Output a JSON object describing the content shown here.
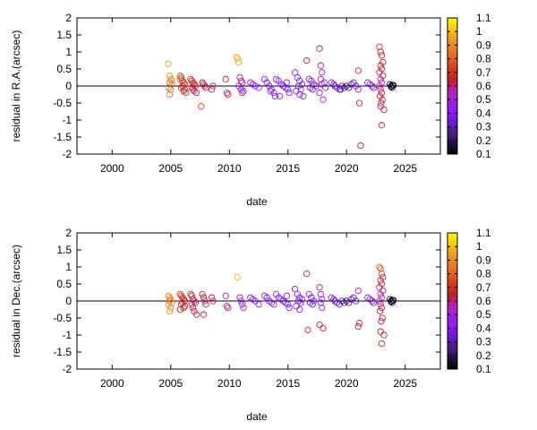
{
  "chart_data": [
    {
      "type": "scatter",
      "xlabel": "date",
      "ylabel": "residual in R.A.(arcsec)",
      "xlim": [
        1997,
        2028
      ],
      "ylim": [
        -2,
        2
      ],
      "xticks": [
        "2000",
        "2005",
        "2010",
        "2015",
        "2020",
        "2025"
      ],
      "yticks": [
        "-2",
        "-1.5",
        "-1",
        "-0.5",
        "0",
        "0.5",
        "1",
        "1.5",
        "2"
      ],
      "colorbar": {
        "min": 0.1,
        "max": 1.1,
        "ticks": [
          "0.1",
          "0.2",
          "0.3",
          "0.4",
          "0.5",
          "0.6",
          "0.7",
          "0.8",
          "0.9",
          "1",
          "1.1"
        ],
        "palette": "gnuplot color-bar (black-purple-red-orange-yellow)"
      },
      "series": [
        {
          "x": [
            2004.8,
            2004.9,
            2005.0,
            2004.9,
            2005.1,
            2004.8,
            2005.0,
            2004.9,
            2005.1
          ],
          "y": [
            0.65,
            0.3,
            0.2,
            0.1,
            0.05,
            -0.05,
            -0.1,
            -0.25,
            0.15
          ],
          "c": [
            0.95,
            0.9,
            0.88,
            0.85,
            0.82,
            0.87,
            0.8,
            0.84,
            0.9
          ]
        },
        {
          "x": [
            2005.8,
            2005.9,
            2006.0,
            2006.1,
            2006.2,
            2006.0,
            2005.9,
            2006.2,
            2006.1,
            2006.3,
            2005.8,
            2006.0
          ],
          "y": [
            0.3,
            0.25,
            0.15,
            0.1,
            0.05,
            0.0,
            -0.05,
            -0.1,
            -0.15,
            -0.2,
            0.2,
            0.0
          ],
          "c": [
            0.75,
            0.72,
            0.7,
            0.68,
            0.66,
            0.7,
            0.72,
            0.68,
            0.66,
            0.64,
            0.74,
            0.7
          ]
        },
        {
          "x": [
            2006.7,
            2006.8,
            2006.9,
            2007.0,
            2007.1,
            2006.8,
            2006.9,
            2007.0,
            2007.2
          ],
          "y": [
            0.2,
            0.15,
            0.1,
            0.05,
            0.0,
            -0.05,
            -0.1,
            -0.15,
            -0.2
          ],
          "c": [
            0.7,
            0.68,
            0.66,
            0.64,
            0.62,
            0.66,
            0.64,
            0.62,
            0.6
          ]
        },
        {
          "x": [
            2007.7,
            2007.8,
            2007.9,
            2008.0,
            2007.6,
            2008.5,
            2008.6
          ],
          "y": [
            0.1,
            0.05,
            0.0,
            -0.05,
            -0.6,
            -0.1,
            0.0
          ],
          "c": [
            0.66,
            0.64,
            0.62,
            0.6,
            0.7,
            0.62,
            0.6
          ]
        },
        {
          "x": [
            2009.7,
            2009.8,
            2009.9,
            2010.6,
            2010.7,
            2010.8
          ],
          "y": [
            0.2,
            -0.2,
            -0.25,
            0.85,
            0.8,
            0.7
          ],
          "c": [
            0.6,
            0.58,
            0.62,
            1.0,
            0.98,
            0.96
          ]
        },
        {
          "x": [
            2010.9,
            2011.0,
            2011.1,
            2010.8,
            2011.0,
            2011.2,
            2011.1
          ],
          "y": [
            0.25,
            0.15,
            0.1,
            0.0,
            -0.1,
            -0.15,
            -0.2
          ],
          "c": [
            0.6,
            0.58,
            0.56,
            0.45,
            0.42,
            0.4,
            0.6
          ]
        },
        {
          "x": [
            2011.8,
            2012.0,
            2012.2,
            2012.5,
            2013.0,
            2013.2,
            2013.4,
            2013.6,
            2013.8,
            2013.5,
            2013.9
          ],
          "y": [
            0.1,
            0.05,
            0.0,
            -0.05,
            0.2,
            0.1,
            0.0,
            -0.1,
            -0.2,
            -0.15,
            -0.3
          ],
          "c": [
            0.45,
            0.42,
            0.4,
            0.44,
            0.42,
            0.4,
            0.38,
            0.41,
            0.44,
            0.39,
            0.42
          ]
        },
        {
          "x": [
            2014.0,
            2014.2,
            2014.4,
            2014.6,
            2014.8,
            2015.0,
            2015.1,
            2014.9,
            2014.3
          ],
          "y": [
            0.2,
            0.15,
            0.05,
            0.0,
            -0.05,
            -0.1,
            -0.2,
            0.1,
            -0.3
          ],
          "c": [
            0.42,
            0.41,
            0.4,
            0.38,
            0.37,
            0.39,
            0.4,
            0.42,
            0.43
          ]
        },
        {
          "x": [
            2015.6,
            2015.8,
            2016.0,
            2016.2,
            2015.9,
            2016.1,
            2015.7,
            2016.0,
            2016.3
          ],
          "y": [
            0.4,
            0.25,
            0.15,
            0.05,
            0.0,
            -0.1,
            -0.15,
            -0.25,
            -0.3
          ],
          "c": [
            0.42,
            0.4,
            0.38,
            0.36,
            0.35,
            0.37,
            0.4,
            0.42,
            0.44
          ]
        },
        {
          "x": [
            2016.8,
            2017.0,
            2017.2,
            2017.4,
            2016.9,
            2017.1,
            2016.6
          ],
          "y": [
            0.2,
            0.15,
            0.05,
            0.0,
            -0.05,
            -0.1,
            0.75
          ],
          "c": [
            0.38,
            0.37,
            0.36,
            0.35,
            0.37,
            0.38,
            0.6
          ]
        },
        {
          "x": [
            2017.7,
            2017.8,
            2017.9,
            2017.8,
            2017.9,
            2017.7,
            2018.0,
            2018.1,
            2018.2
          ],
          "y": [
            1.1,
            0.6,
            0.4,
            0.2,
            0.05,
            -0.2,
            -0.4,
            0.1,
            -0.05
          ],
          "c": [
            0.62,
            0.6,
            0.58,
            0.45,
            0.4,
            0.42,
            0.56,
            0.4,
            0.38
          ]
        },
        {
          "x": [
            2018.7,
            2018.9,
            2019.0,
            2019.2,
            2019.4,
            2019.6,
            2019.8,
            2019.5
          ],
          "y": [
            0.1,
            0.05,
            0.0,
            -0.05,
            -0.1,
            0.0,
            -0.05,
            -0.1
          ],
          "c": [
            0.38,
            0.36,
            0.35,
            0.34,
            0.33,
            0.3,
            0.25,
            0.32
          ]
        },
        {
          "x": [
            2020.0,
            2020.2,
            2020.4,
            2020.6,
            2020.8,
            2021.0,
            2021.1,
            2021.2,
            2021.0
          ],
          "y": [
            0.0,
            -0.05,
            0.05,
            0.1,
            0.0,
            0.45,
            -0.5,
            -1.75,
            -0.1
          ],
          "c": [
            0.2,
            0.25,
            0.3,
            0.35,
            0.36,
            0.62,
            0.64,
            0.66,
            0.38
          ]
        },
        {
          "x": [
            2021.8,
            2022.0,
            2022.2,
            2022.3
          ],
          "y": [
            0.1,
            0.05,
            0.0,
            -0.05
          ],
          "c": [
            0.4,
            0.38,
            0.36,
            0.34
          ]
        },
        {
          "x": [
            2022.8,
            2022.9,
            2023.0,
            2023.1,
            2022.9,
            2023.0,
            2022.8,
            2023.1,
            2022.9,
            2023.0,
            2022.8,
            2022.9,
            2023.0,
            2022.85,
            2023.05,
            2022.95,
            2022.9,
            2023.2,
            2023.0
          ],
          "y": [
            1.15,
            1.0,
            0.9,
            0.7,
            0.6,
            0.5,
            0.4,
            0.3,
            0.2,
            0.1,
            0.0,
            -0.1,
            -0.2,
            -0.3,
            -0.4,
            -0.5,
            -0.6,
            -0.7,
            -1.15
          ],
          "c": [
            0.68,
            0.66,
            0.64,
            0.62,
            0.64,
            0.66,
            0.62,
            0.6,
            0.58,
            0.56,
            0.55,
            0.6,
            0.62,
            0.64,
            0.66,
            0.62,
            0.6,
            0.64,
            0.66
          ]
        },
        {
          "x": [
            2023.7,
            2023.8,
            2023.9,
            2024.0,
            2023.8,
            2023.9
          ],
          "y": [
            0.05,
            0.0,
            -0.05,
            0.02,
            -0.02,
            0.03
          ],
          "c": [
            0.15,
            0.12,
            0.2,
            0.1,
            0.18,
            0.14
          ]
        }
      ]
    },
    {
      "type": "scatter",
      "xlabel": "date",
      "ylabel": "residual in Dec.(arcsec)",
      "xlim": [
        1997,
        2028
      ],
      "ylim": [
        -2,
        2
      ],
      "xticks": [
        "2000",
        "2005",
        "2010",
        "2015",
        "2020",
        "2025"
      ],
      "yticks": [
        "-2",
        "-1.5",
        "-1",
        "-0.5",
        "0",
        "0.5",
        "1",
        "1.5",
        "2"
      ],
      "colorbar": {
        "min": 0.1,
        "max": 1.1,
        "ticks": [
          "0.1",
          "0.2",
          "0.3",
          "0.4",
          "0.5",
          "0.6",
          "0.7",
          "0.8",
          "0.9",
          "1",
          "1.1"
        ],
        "palette": "gnuplot color-bar (black-purple-red-orange-yellow)"
      },
      "series": [
        {
          "x": [
            2004.8,
            2004.9,
            2005.0,
            2004.9,
            2005.1,
            2004.8,
            2005.0,
            2004.9
          ],
          "y": [
            0.15,
            0.1,
            0.05,
            0.0,
            -0.05,
            -0.1,
            -0.2,
            -0.3
          ],
          "c": [
            0.9,
            0.88,
            0.86,
            0.85,
            0.84,
            0.87,
            0.89,
            0.92
          ]
        },
        {
          "x": [
            2005.8,
            2005.9,
            2006.0,
            2006.1,
            2006.2,
            2006.0,
            2005.9,
            2006.2,
            2006.1,
            2005.8
          ],
          "y": [
            0.2,
            0.15,
            0.1,
            0.05,
            0.0,
            -0.05,
            -0.1,
            -0.15,
            -0.2,
            -0.25
          ],
          "c": [
            0.72,
            0.7,
            0.68,
            0.66,
            0.65,
            0.7,
            0.72,
            0.68,
            0.66,
            0.64
          ]
        },
        {
          "x": [
            2006.7,
            2006.8,
            2006.9,
            2007.0,
            2007.1,
            2006.8,
            2006.9,
            2007.0,
            2007.2
          ],
          "y": [
            0.2,
            0.15,
            0.05,
            0.0,
            -0.05,
            -0.1,
            -0.2,
            -0.3,
            -0.4
          ],
          "c": [
            0.68,
            0.66,
            0.64,
            0.62,
            0.6,
            0.62,
            0.64,
            0.66,
            0.6
          ]
        },
        {
          "x": [
            2007.7,
            2007.8,
            2007.9,
            2008.0,
            2007.8,
            2008.5,
            2008.6
          ],
          "y": [
            0.2,
            0.1,
            0.0,
            -0.1,
            -0.4,
            0.1,
            0.0
          ],
          "c": [
            0.66,
            0.64,
            0.62,
            0.6,
            0.64,
            0.62,
            0.6
          ]
        },
        {
          "x": [
            2009.7,
            2009.8,
            2009.9,
            2010.7,
            2010.9,
            2011.0,
            2011.1,
            2011.2
          ],
          "y": [
            0.15,
            -0.15,
            -0.2,
            0.7,
            0.1,
            0.0,
            -0.1,
            -0.2
          ],
          "c": [
            0.55,
            0.56,
            0.58,
            0.98,
            0.45,
            0.42,
            0.44,
            0.4
          ]
        },
        {
          "x": [
            2011.8,
            2012.0,
            2012.2,
            2012.5,
            2013.0,
            2013.2,
            2013.4,
            2013.6,
            2013.8
          ],
          "y": [
            0.1,
            0.05,
            0.0,
            -0.1,
            0.15,
            0.1,
            0.0,
            -0.05,
            -0.1
          ],
          "c": [
            0.45,
            0.42,
            0.4,
            0.44,
            0.42,
            0.4,
            0.38,
            0.41,
            0.44
          ]
        },
        {
          "x": [
            2014.0,
            2014.2,
            2014.4,
            2014.6,
            2014.8,
            2015.0,
            2015.1,
            2014.9
          ],
          "y": [
            0.2,
            0.1,
            0.05,
            0.0,
            -0.05,
            -0.1,
            -0.2,
            0.15
          ],
          "c": [
            0.42,
            0.41,
            0.4,
            0.38,
            0.37,
            0.39,
            0.4,
            0.42
          ]
        },
        {
          "x": [
            2015.6,
            2015.8,
            2016.0,
            2016.2,
            2015.9,
            2016.1,
            2015.7,
            2016.0
          ],
          "y": [
            0.35,
            0.2,
            0.1,
            0.05,
            0.0,
            -0.05,
            -0.15,
            -0.25
          ],
          "c": [
            0.42,
            0.4,
            0.38,
            0.36,
            0.35,
            0.37,
            0.4,
            0.42
          ]
        },
        {
          "x": [
            2016.8,
            2017.0,
            2017.2,
            2016.9,
            2017.1,
            2016.6,
            2016.7
          ],
          "y": [
            0.2,
            0.1,
            0.0,
            -0.05,
            -0.1,
            0.8,
            -0.85
          ],
          "c": [
            0.38,
            0.37,
            0.36,
            0.37,
            0.38,
            0.6,
            0.62
          ]
        },
        {
          "x": [
            2017.7,
            2017.8,
            2017.9,
            2017.8,
            2017.9,
            2017.7,
            2018.0
          ],
          "y": [
            0.4,
            0.2,
            0.05,
            -0.05,
            -0.2,
            -0.7,
            -0.8
          ],
          "c": [
            0.6,
            0.45,
            0.4,
            0.42,
            0.44,
            0.62,
            0.64
          ]
        },
        {
          "x": [
            2018.7,
            2018.9,
            2019.0,
            2019.2,
            2019.4,
            2019.6,
            2019.8
          ],
          "y": [
            0.1,
            0.05,
            0.0,
            -0.05,
            -0.1,
            0.0,
            -0.05
          ],
          "c": [
            0.38,
            0.36,
            0.35,
            0.34,
            0.33,
            0.3,
            0.25
          ]
        },
        {
          "x": [
            2020.0,
            2020.2,
            2020.4,
            2020.6,
            2020.8,
            2021.0,
            2021.1,
            2021.0
          ],
          "y": [
            0.0,
            -0.05,
            0.05,
            0.1,
            0.0,
            0.3,
            -0.65,
            -0.75
          ],
          "c": [
            0.2,
            0.25,
            0.3,
            0.35,
            0.36,
            0.4,
            0.62,
            0.64
          ]
        },
        {
          "x": [
            2021.8,
            2022.0,
            2022.2,
            2022.3
          ],
          "y": [
            0.1,
            0.05,
            0.0,
            -0.05
          ],
          "c": [
            0.4,
            0.38,
            0.36,
            0.34
          ]
        },
        {
          "x": [
            2022.8,
            2022.9,
            2023.0,
            2023.1,
            2022.9,
            2023.0,
            2022.8,
            2023.1,
            2022.9,
            2023.0,
            2022.8,
            2022.9,
            2023.0,
            2022.85,
            2023.05,
            2022.95,
            2022.9,
            2023.2,
            2023.0
          ],
          "y": [
            1.0,
            0.95,
            0.8,
            0.7,
            0.6,
            0.5,
            0.4,
            0.3,
            0.2,
            0.1,
            0.0,
            -0.1,
            -0.2,
            -0.3,
            -0.5,
            -0.6,
            -0.9,
            -1.0,
            -1.25
          ],
          "c": [
            0.8,
            0.78,
            0.74,
            0.7,
            0.68,
            0.66,
            0.62,
            0.6,
            0.58,
            0.56,
            0.55,
            0.6,
            0.62,
            0.64,
            0.66,
            0.62,
            0.64,
            0.66,
            0.68
          ]
        },
        {
          "x": [
            2023.7,
            2023.8,
            2023.9,
            2024.0,
            2023.8,
            2023.9
          ],
          "y": [
            0.05,
            0.0,
            -0.05,
            0.02,
            -0.02,
            0.03
          ],
          "c": [
            0.15,
            0.12,
            0.2,
            0.1,
            0.18,
            0.14
          ]
        }
      ]
    }
  ]
}
